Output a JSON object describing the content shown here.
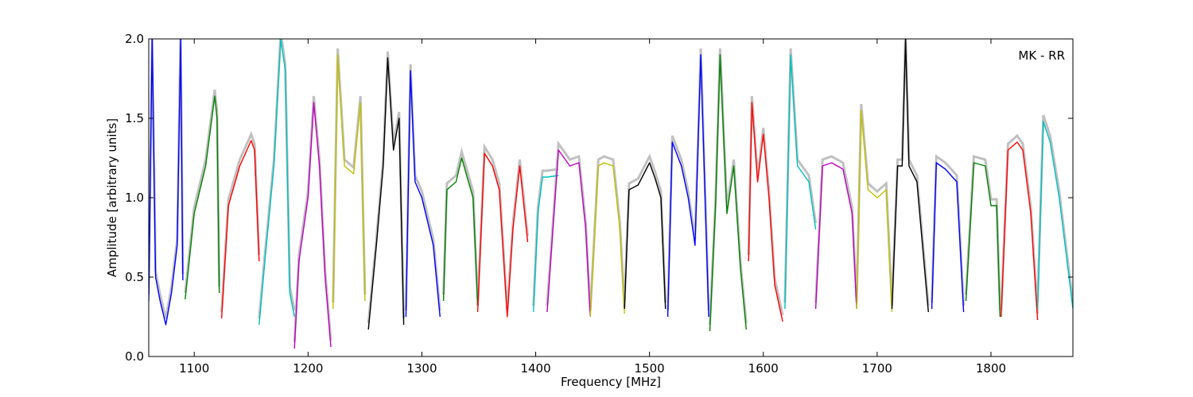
{
  "chart_data": {
    "type": "line",
    "title": "",
    "annotation": "MK - RR",
    "xlabel": "Frequency [MHz]",
    "ylabel": "Amplitude [arbitrary units]",
    "xlim": [
      1060,
      1872
    ],
    "ylim": [
      0.0,
      2.0
    ],
    "x_ticks": [
      1100,
      1200,
      1300,
      1400,
      1500,
      1600,
      1700,
      1800
    ],
    "y_ticks": [
      0.0,
      0.5,
      1.0,
      1.5,
      2.0
    ],
    "x_tick_labels": [
      "1100",
      "1200",
      "1300",
      "1400",
      "1500",
      "1600",
      "1700",
      "1800"
    ],
    "y_tick_labels": [
      "0.0",
      "0.5",
      "1.0",
      "1.5",
      "2.0"
    ],
    "legend": "none",
    "grid": false,
    "background_color": "#c0c0c0",
    "subbands": [
      {
        "color": "#0000ff",
        "x": [
          1060,
          1063,
          1066,
          1070,
          1075,
          1080,
          1085,
          1088,
          1090
        ],
        "y": [
          0.35,
          2.0,
          0.5,
          0.35,
          0.2,
          0.4,
          0.7,
          2.0,
          0.48
        ]
      },
      {
        "color": "#008000",
        "x": [
          1092,
          1100,
          1110,
          1118,
          1120,
          1122
        ],
        "y": [
          0.36,
          0.9,
          1.2,
          1.64,
          1.5,
          0.4
        ]
      },
      {
        "color": "#ff0000",
        "x": [
          1124,
          1130,
          1140,
          1150,
          1153,
          1157
        ],
        "y": [
          0.24,
          0.95,
          1.2,
          1.36,
          1.3,
          0.6
        ]
      },
      {
        "color": "#00bfbf",
        "x": [
          1157,
          1162,
          1170,
          1176,
          1180,
          1184,
          1188
        ],
        "y": [
          0.2,
          0.6,
          1.2,
          2.0,
          1.8,
          0.4,
          0.25
        ]
      },
      {
        "color": "#bf00bf",
        "x": [
          1188,
          1192,
          1200,
          1205,
          1210,
          1215,
          1220
        ],
        "y": [
          0.05,
          0.6,
          1.0,
          1.6,
          1.2,
          0.5,
          0.06
        ]
      },
      {
        "color": "#bfbf00",
        "x": [
          1222,
          1226,
          1232,
          1240,
          1246,
          1250
        ],
        "y": [
          0.3,
          1.9,
          1.2,
          1.15,
          1.6,
          0.35
        ]
      },
      {
        "color": "#000000",
        "x": [
          1253,
          1260,
          1266,
          1270,
          1275,
          1280,
          1284
        ],
        "y": [
          0.17,
          0.7,
          1.2,
          1.88,
          1.3,
          1.5,
          0.2
        ]
      },
      {
        "color": "#0000ff",
        "x": [
          1286,
          1290,
          1294,
          1300,
          1310,
          1316
        ],
        "y": [
          0.25,
          1.8,
          1.1,
          1.0,
          0.7,
          0.25
        ]
      },
      {
        "color": "#008000",
        "x": [
          1319,
          1322,
          1330,
          1335,
          1345,
          1349
        ],
        "y": [
          0.35,
          1.05,
          1.1,
          1.25,
          1.0,
          0.32
        ]
      },
      {
        "color": "#ff0000",
        "x": [
          1349,
          1355,
          1362,
          1368,
          1375,
          1380,
          1386,
          1393
        ],
        "y": [
          0.28,
          1.28,
          1.2,
          1.05,
          0.25,
          0.8,
          1.2,
          0.72
        ]
      },
      {
        "color": "#00bfbf",
        "x": [
          1398,
          1402,
          1406,
          1410,
          1420
        ],
        "y": [
          0.28,
          0.9,
          1.13,
          1.13,
          1.14
        ]
      },
      {
        "color": "#bf00bf",
        "x": [
          1410,
          1420,
          1430,
          1438,
          1444,
          1448
        ],
        "y": [
          0.28,
          1.3,
          1.2,
          1.22,
          0.8,
          0.25
        ]
      },
      {
        "color": "#bfbf00",
        "x": [
          1448,
          1455,
          1460,
          1468,
          1474,
          1478
        ],
        "y": [
          0.25,
          1.2,
          1.22,
          1.2,
          0.8,
          0.27
        ]
      },
      {
        "color": "#000000",
        "x": [
          1478,
          1482,
          1490,
          1500,
          1505,
          1510,
          1514
        ],
        "y": [
          0.3,
          1.05,
          1.08,
          1.22,
          1.12,
          1.0,
          0.3
        ]
      },
      {
        "color": "#0000ff",
        "x": [
          1516,
          1520,
          1528,
          1534,
          1540,
          1545,
          1552
        ],
        "y": [
          0.25,
          1.35,
          1.2,
          1.0,
          0.7,
          1.9,
          0.25
        ]
      },
      {
        "color": "#008000",
        "x": [
          1553,
          1558,
          1562,
          1568,
          1574,
          1580,
          1585
        ],
        "y": [
          0.16,
          0.95,
          1.9,
          0.9,
          1.2,
          0.55,
          0.17
        ]
      },
      {
        "color": "#ff0000",
        "x": [
          1587,
          1590,
          1595,
          1600,
          1605,
          1610,
          1617
        ],
        "y": [
          0.6,
          1.6,
          1.1,
          1.4,
          1.0,
          0.45,
          0.22
        ]
      },
      {
        "color": "#00bfbf",
        "x": [
          1619,
          1624,
          1630,
          1640,
          1646
        ],
        "y": [
          0.3,
          1.9,
          1.2,
          1.1,
          0.8
        ]
      },
      {
        "color": "#bf00bf",
        "x": [
          1646,
          1652,
          1660,
          1670,
          1678,
          1682
        ],
        "y": [
          0.3,
          1.2,
          1.22,
          1.18,
          0.9,
          0.3
        ]
      },
      {
        "color": "#bfbf00",
        "x": [
          1682,
          1686,
          1692,
          1700,
          1708,
          1713
        ],
        "y": [
          0.3,
          1.55,
          1.05,
          1.0,
          1.05,
          0.28
        ]
      },
      {
        "color": "#000000",
        "x": [
          1713,
          1718,
          1722,
          1725,
          1728,
          1735,
          1745
        ],
        "y": [
          0.3,
          1.2,
          1.2,
          2.0,
          1.2,
          1.1,
          0.28
        ]
      },
      {
        "color": "#0000ff",
        "x": [
          1748,
          1752,
          1760,
          1770,
          1776
        ],
        "y": [
          0.3,
          1.22,
          1.18,
          1.1,
          0.28
        ]
      },
      {
        "color": "#008000",
        "x": [
          1778,
          1785,
          1795,
          1800,
          1805,
          1808
        ],
        "y": [
          0.35,
          1.22,
          1.2,
          0.95,
          0.95,
          0.25
        ]
      },
      {
        "color": "#ff0000",
        "x": [
          1809,
          1815,
          1823,
          1828,
          1835,
          1841
        ],
        "y": [
          0.25,
          1.3,
          1.35,
          1.3,
          0.9,
          0.23
        ]
      },
      {
        "color": "#00bfbf",
        "x": [
          1841,
          1846,
          1852,
          1860,
          1872
        ],
        "y": [
          0.3,
          1.48,
          1.35,
          1.0,
          0.3
        ]
      }
    ]
  }
}
